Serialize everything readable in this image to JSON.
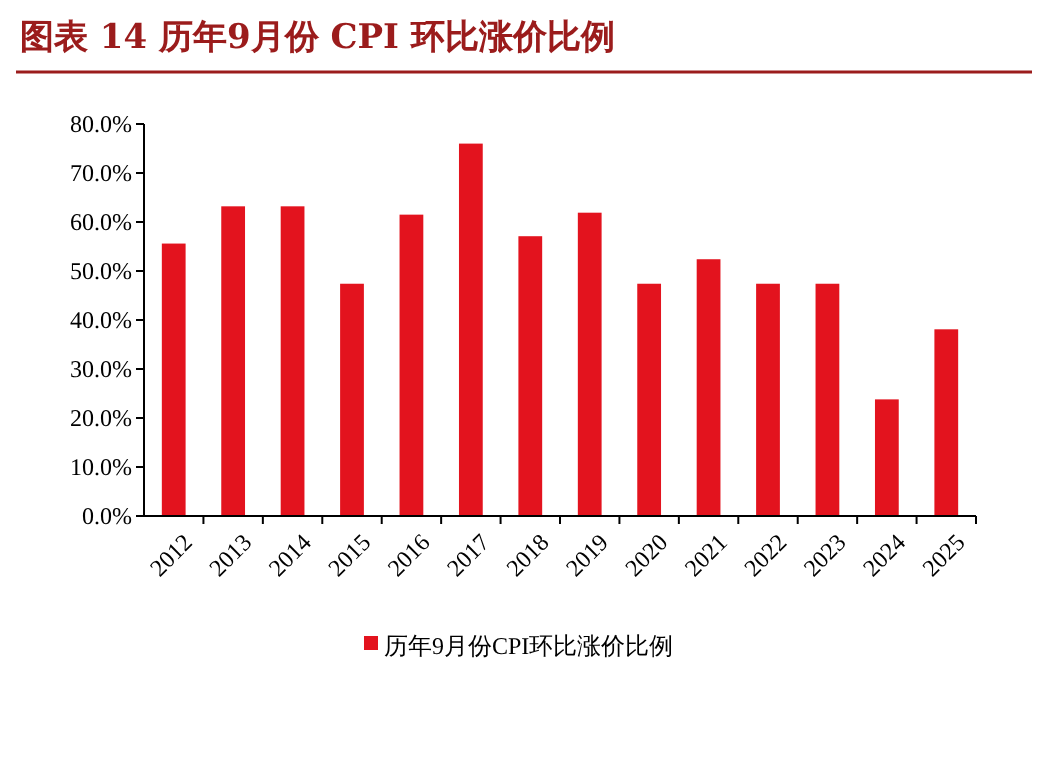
{
  "chart_data": {
    "type": "bar",
    "title": "图表 14    历年9月份 CPI 环比涨价比例",
    "categories": [
      "2012",
      "2013",
      "2014",
      "2015",
      "2016",
      "2017",
      "2018",
      "2019",
      "2020",
      "2021",
      "2022",
      "2023",
      "2024",
      "2025"
    ],
    "series": [
      {
        "name": "历年9月份CPI环比涨价比例",
        "color": "#e3131e",
        "values": [
          55.6,
          63.2,
          63.2,
          47.4,
          61.5,
          76.0,
          57.1,
          61.9,
          47.4,
          52.4,
          47.4,
          47.4,
          23.8,
          38.1
        ]
      }
    ],
    "ylim": [
      0,
      80
    ],
    "yticks": [
      {
        "value": 0,
        "label": "0.0%"
      },
      {
        "value": 10,
        "label": "10.0%"
      },
      {
        "value": 20,
        "label": "20.0%"
      },
      {
        "value": 30,
        "label": "30.0%"
      },
      {
        "value": 40,
        "label": "40.0%"
      },
      {
        "value": 50,
        "label": "50.0%"
      },
      {
        "value": 60,
        "label": "60.0%"
      },
      {
        "value": 70,
        "label": "70.0%"
      },
      {
        "value": 80,
        "label": "80.0%"
      }
    ],
    "legend": "bottom",
    "grid": false
  }
}
